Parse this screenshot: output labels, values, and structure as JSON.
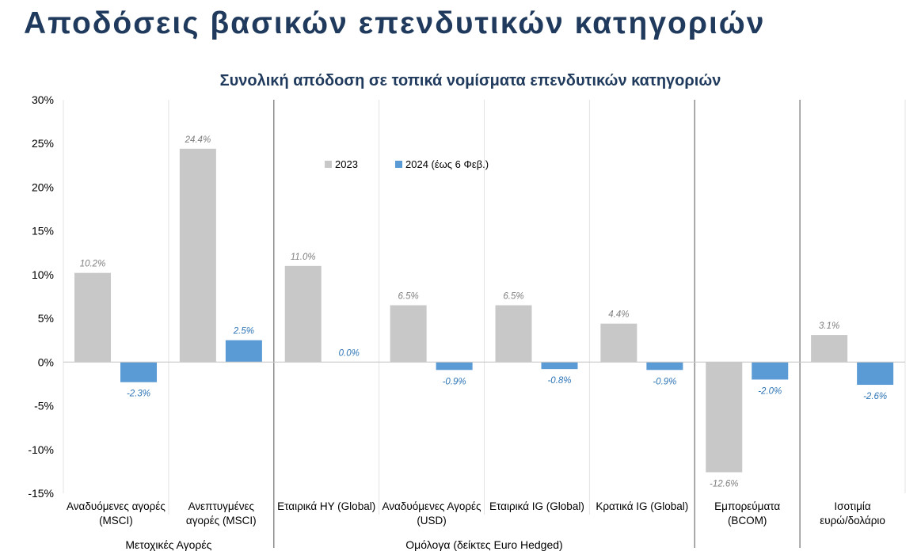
{
  "page": {
    "title": "Αποδόσεις βασικών επενδυτικών κατηγοριών"
  },
  "chart_data": {
    "type": "bar",
    "title": "Συνολική απόδοση σε τοπικά νομίσματα επενδυτικών κατηγοριών",
    "xlabel": "",
    "ylabel": "",
    "ylim": [
      -15,
      30
    ],
    "yticks": [
      "30%",
      "25%",
      "20%",
      "15%",
      "10%",
      "5%",
      "0%",
      "-5%",
      "-10%",
      "-15%"
    ],
    "ytick_values": [
      30,
      25,
      20,
      15,
      10,
      5,
      0,
      -5,
      -10,
      -15
    ],
    "categories": [
      [
        "Αναδυόμενες αγορές",
        "(MSCI)"
      ],
      [
        "Ανεπτυγμένες",
        "αγορές (MSCI)"
      ],
      [
        "Εταιρικά HY (Global)"
      ],
      [
        "Αναδυόμενες Αγορές",
        "(USD)"
      ],
      [
        "Εταιρικά IG (Global)"
      ],
      [
        "Κρατικά IG (Global)"
      ],
      [
        "Εμπορεύματα",
        "(BCOM)"
      ],
      [
        "Ισοτιμία",
        "ευρώ/δολάριο"
      ]
    ],
    "groups": [
      {
        "label": "Μετοχικές Αγορές",
        "start": 0,
        "end": 1
      },
      {
        "label": "Ομόλογα (δείκτες Euro Hedged)",
        "start": 2,
        "end": 5
      },
      {
        "label": "",
        "start": 6,
        "end": 6
      },
      {
        "label": "",
        "start": 7,
        "end": 7
      }
    ],
    "separators_after": [
      1,
      5,
      6
    ],
    "series": [
      {
        "name": "2023",
        "color": "#c8c8c8",
        "label_color": "#7f7f7f",
        "values": [
          10.2,
          24.4,
          11.0,
          6.5,
          6.5,
          4.4,
          -12.6,
          3.1
        ],
        "labels": [
          "10.2%",
          "24.4%",
          "11.0%",
          "6.5%",
          "6.5%",
          "4.4%",
          "-12.6%",
          "3.1%"
        ]
      },
      {
        "name": "2024 (έως 6 Φεβ.)",
        "color": "#5b9bd5",
        "label_color": "#2e75b6",
        "values": [
          -2.3,
          2.5,
          0.0,
          -0.9,
          -0.8,
          -0.9,
          -2.0,
          -2.6
        ],
        "labels": [
          "-2.3%",
          "2.5%",
          "0.0%",
          "-0.9%",
          "-0.8%",
          "-0.9%",
          "-2.0%",
          "-2.6%"
        ]
      }
    ],
    "legend": "top-center",
    "grid": "vertical category gridlines"
  }
}
